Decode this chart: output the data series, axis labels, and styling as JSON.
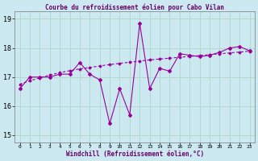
{
  "title": "Courbe du refroidissement éolien pour Cabo Vilan",
  "xlabel": "Windchill (Refroidissement éolien,°C)",
  "background_color": "#cce8f0",
  "grid_color": "#b0d8cc",
  "line_color": "#990099",
  "xlim": [
    -0.5,
    23.5
  ],
  "ylim": [
    14.75,
    19.25
  ],
  "yticks": [
    15,
    16,
    17,
    18,
    19
  ],
  "xticks": [
    0,
    1,
    2,
    3,
    4,
    5,
    6,
    7,
    8,
    9,
    10,
    11,
    12,
    13,
    14,
    15,
    16,
    17,
    18,
    19,
    20,
    21,
    22,
    23
  ],
  "hours": [
    0,
    1,
    2,
    3,
    4,
    5,
    6,
    7,
    8,
    9,
    10,
    11,
    12,
    13,
    14,
    15,
    16,
    17,
    18,
    19,
    20,
    21,
    22,
    23
  ],
  "windchill": [
    16.6,
    17.0,
    17.0,
    17.0,
    17.1,
    17.1,
    17.5,
    17.1,
    16.9,
    15.4,
    16.6,
    15.7,
    18.85,
    16.6,
    17.3,
    17.2,
    17.8,
    17.75,
    17.7,
    17.75,
    17.85,
    18.0,
    18.05,
    17.9
  ],
  "trend": [
    16.75,
    16.87,
    16.97,
    17.07,
    17.15,
    17.22,
    17.28,
    17.33,
    17.38,
    17.43,
    17.47,
    17.51,
    17.55,
    17.59,
    17.62,
    17.65,
    17.68,
    17.71,
    17.74,
    17.77,
    17.8,
    17.83,
    17.86,
    17.89
  ]
}
